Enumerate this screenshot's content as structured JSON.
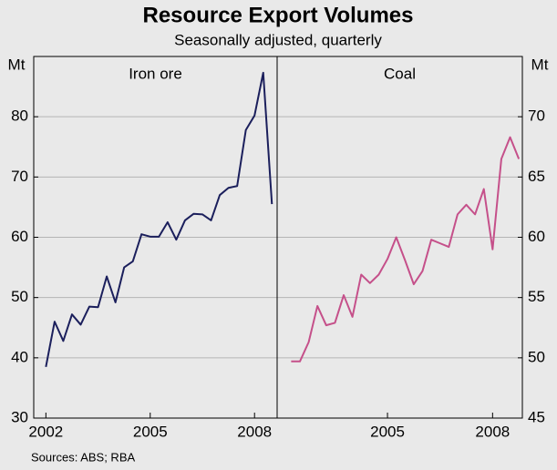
{
  "chart_data": {
    "type": "line",
    "title": "Resource Export Volumes",
    "subtitle": "Seasonally adjusted, quarterly",
    "source": "Sources: ABS; RBA",
    "y_unit": "Mt",
    "y2_unit": "Mt",
    "ylim": [
      30,
      90
    ],
    "yticks": [
      30,
      40,
      50,
      60,
      70,
      80
    ],
    "y2lim": [
      45,
      75
    ],
    "y2ticks": [
      45,
      50,
      55,
      60,
      65,
      70
    ],
    "grid": true,
    "panels": [
      {
        "xlim": [
          2001.65,
          2008.65
        ],
        "xticks": [
          2002,
          2005,
          2008
        ],
        "x": [
          2002,
          2002.25,
          2002.5,
          2002.75,
          2003,
          2003.25,
          2003.5,
          2003.75,
          2004,
          2004.25,
          2004.5,
          2004.75,
          2005,
          2005.25,
          2005.5,
          2005.75,
          2006,
          2006.25,
          2006.5,
          2006.75,
          2007,
          2007.25,
          2007.5,
          2007.75,
          2008,
          2008.25,
          2008.5
        ],
        "series": [
          {
            "name": "Iron ore",
            "color": "#1b1f5c",
            "axis": "y",
            "values": [
              38.5,
              46,
              42.8,
              47.2,
              45.5,
              48.5,
              48.4,
              53.5,
              49.2,
              55,
              56,
              60.5,
              60.1,
              60.1,
              62.5,
              59.6,
              62.8,
              63.9,
              63.8,
              62.8,
              67,
              68.2,
              68.5,
              77.8,
              80.2,
              87.3,
              65.5
            ]
          }
        ]
      },
      {
        "xlim": [
          2001.85,
          2008.85
        ],
        "xticks": [
          2005,
          2008
        ],
        "x": [
          2002.25,
          2002.5,
          2002.75,
          2003,
          2003.25,
          2003.5,
          2003.75,
          2004,
          2004.25,
          2004.5,
          2004.75,
          2005,
          2005.25,
          2005.5,
          2005.75,
          2006,
          2006.25,
          2006.5,
          2006.75,
          2007,
          2007.25,
          2007.5,
          2007.75,
          2008,
          2008.25,
          2008.5,
          2008.75
        ],
        "series": [
          {
            "name": "Coal",
            "color": "#c5508a",
            "axis": "y2",
            "values": [
              49.7,
              49.7,
              51.3,
              54.3,
              52.7,
              52.9,
              55.2,
              53.4,
              56.9,
              56.2,
              56.9,
              58.2,
              60,
              58.1,
              56.1,
              57.2,
              59.8,
              59.5,
              59.2,
              61.9,
              62.7,
              61.9,
              64,
              59,
              66.5,
              68.3,
              66.5
            ]
          }
        ]
      }
    ]
  }
}
